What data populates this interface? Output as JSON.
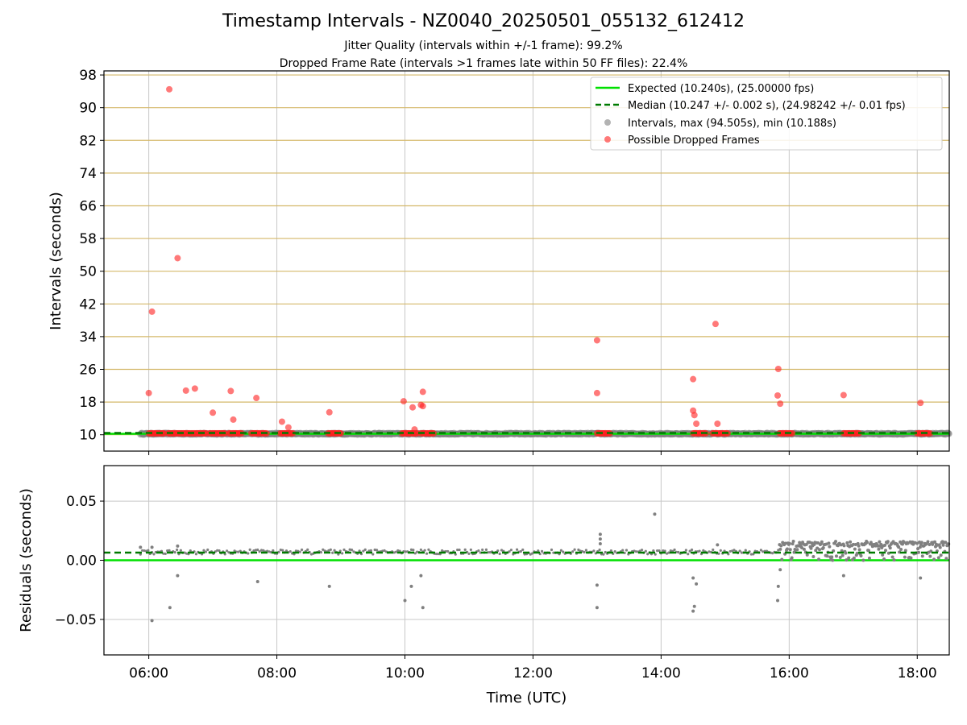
{
  "title": "Timestamp Intervals - NZ0040_20250501_055132_612412",
  "subtitle_1": "Jitter Quality (intervals within +/-1 frame): 99.2%",
  "subtitle_2": "Dropped Frame Rate (intervals >1 frames late within 50 FF files): 22.4%",
  "colors": {
    "expected": "#00e000",
    "median": "#007a00",
    "intervals": "#808080",
    "dropped": "#ff2020",
    "hgrid_top": "#d4b86a",
    "grid": "#c8c8c8"
  },
  "chart_data": [
    {
      "type": "scatter",
      "xlabel": "",
      "ylabel": "Intervals (seconds)",
      "x_unit": "hours UTC",
      "xlim": [
        5.3,
        18.5
      ],
      "ylim": [
        6,
        99
      ],
      "x_ticks": [
        6,
        8,
        10,
        12,
        14,
        16,
        18
      ],
      "y_ticks": [
        10,
        18,
        26,
        34,
        42,
        50,
        58,
        66,
        74,
        82,
        90,
        98
      ],
      "y_tick_labels": [
        "10",
        "18",
        "26",
        "34",
        "42",
        "50",
        "58",
        "66",
        "74",
        "82",
        "90",
        "98"
      ],
      "grid": true,
      "legend": {
        "position": "top-right",
        "entries": [
          "Expected (10.240s), (25.00000 fps)",
          "Median (10.247 +/- 0.002 s), (24.98242 +/- 0.01 fps)",
          "Intervals, max (94.505s), min (10.188s)",
          "Possible Dropped Frames"
        ]
      },
      "expected_value": 10.24,
      "median_value": 10.247,
      "interval_x_range": [
        5.87,
        18.5
      ],
      "dropped_bands": [
        [
          6.0,
          6.25
        ],
        [
          6.3,
          6.9
        ],
        [
          6.95,
          7.2
        ],
        [
          7.25,
          7.45
        ],
        [
          7.6,
          7.85
        ],
        [
          8.05,
          8.25
        ],
        [
          8.8,
          9.0
        ],
        [
          9.95,
          10.2
        ],
        [
          10.25,
          10.45
        ],
        [
          13.0,
          13.2
        ],
        [
          14.5,
          14.7
        ],
        [
          14.8,
          15.05
        ],
        [
          15.85,
          16.05
        ],
        [
          16.85,
          17.1
        ],
        [
          18.0,
          18.2
        ]
      ],
      "dropped_points": [
        [
          6.0,
          20.2
        ],
        [
          6.05,
          40.1
        ],
        [
          6.32,
          94.5
        ],
        [
          6.45,
          53.2
        ],
        [
          6.58,
          20.8
        ],
        [
          6.72,
          21.3
        ],
        [
          7.0,
          15.4
        ],
        [
          7.28,
          20.7
        ],
        [
          7.32,
          13.7
        ],
        [
          7.68,
          19.0
        ],
        [
          8.08,
          13.2
        ],
        [
          8.18,
          11.8
        ],
        [
          8.82,
          15.5
        ],
        [
          9.98,
          18.2
        ],
        [
          10.12,
          16.7
        ],
        [
          10.15,
          11.3
        ],
        [
          10.25,
          17.3
        ],
        [
          10.28,
          17.0
        ],
        [
          10.28,
          20.5
        ],
        [
          13.0,
          20.2
        ],
        [
          13.0,
          33.1
        ],
        [
          14.5,
          23.6
        ],
        [
          14.5,
          15.9
        ],
        [
          14.52,
          14.8
        ],
        [
          14.55,
          12.7
        ],
        [
          14.85,
          37.1
        ],
        [
          14.88,
          12.7
        ],
        [
          15.83,
          26.1
        ],
        [
          15.82,
          19.6
        ],
        [
          15.86,
          17.6
        ],
        [
          16.85,
          19.7
        ],
        [
          18.05,
          17.8
        ]
      ]
    },
    {
      "type": "scatter",
      "xlabel": "Time (UTC)",
      "ylabel": "Residuals (seconds)",
      "xlim": [
        5.3,
        18.5
      ],
      "ylim": [
        -0.08,
        0.08
      ],
      "x_ticks": [
        6,
        8,
        10,
        12,
        14,
        16,
        18
      ],
      "x_tick_labels": [
        "06:00",
        "08:00",
        "10:00",
        "12:00",
        "14:00",
        "16:00",
        "18:00"
      ],
      "y_ticks": [
        -0.05,
        0.0,
        0.05
      ],
      "y_tick_labels": [
        "−0.05",
        "0.00",
        "0.05"
      ],
      "grid": true,
      "expected_value": 0.0,
      "median_value": 0.0065,
      "residual_baseline": 0.007,
      "dense_region": [
        15.85,
        18.5
      ],
      "outliers": [
        [
          6.05,
          -0.051
        ],
        [
          6.33,
          -0.04
        ],
        [
          6.45,
          -0.013
        ],
        [
          7.7,
          -0.018
        ],
        [
          8.82,
          -0.022
        ],
        [
          10.0,
          -0.034
        ],
        [
          10.1,
          -0.022
        ],
        [
          10.25,
          -0.013
        ],
        [
          10.28,
          -0.04
        ],
        [
          13.0,
          -0.021
        ],
        [
          13.0,
          -0.04
        ],
        [
          13.9,
          0.039
        ],
        [
          14.5,
          -0.015
        ],
        [
          14.5,
          -0.043
        ],
        [
          14.52,
          -0.039
        ],
        [
          14.55,
          -0.02
        ],
        [
          15.82,
          -0.034
        ],
        [
          15.83,
          -0.022
        ],
        [
          15.86,
          -0.008
        ],
        [
          16.85,
          -0.013
        ],
        [
          18.05,
          -0.015
        ],
        [
          13.05,
          0.022
        ],
        [
          13.05,
          0.018
        ],
        [
          13.05,
          0.014
        ],
        [
          14.88,
          0.013
        ],
        [
          6.45,
          0.012
        ],
        [
          6.05,
          0.011
        ],
        [
          5.87,
          0.011
        ]
      ]
    }
  ]
}
